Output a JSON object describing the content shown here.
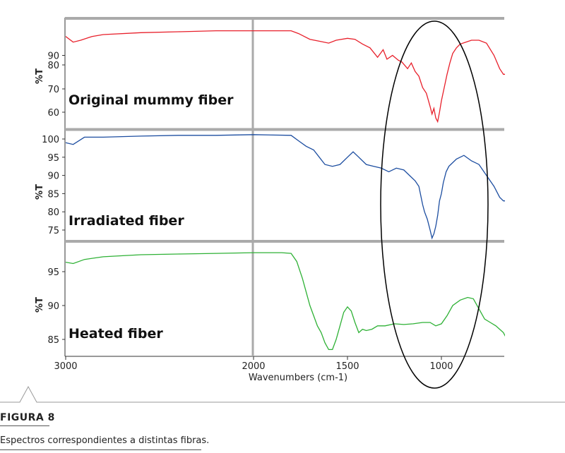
{
  "chart_data": {
    "type": "line",
    "xlabel": "Wavenumbers (cm-1)",
    "x_ticks": [
      3000,
      2000,
      1500,
      1000
    ],
    "x_range": [
      3950,
      650
    ],
    "x_reversed": true,
    "panels": [
      {
        "name": "Original mummy fiber",
        "ylabel": "%T",
        "color": "#e8202b",
        "y_ticks": [
          90,
          80,
          70,
          60
        ],
        "points": [
          [
            3950,
            101
          ],
          [
            3750,
            102
          ],
          [
            3650,
            102.5
          ],
          [
            3580,
            99
          ],
          [
            3480,
            93
          ],
          [
            3400,
            88
          ],
          [
            3360,
            85.5
          ],
          [
            3300,
            88
          ],
          [
            3230,
            92
          ],
          [
            3180,
            94
          ],
          [
            3150,
            93
          ],
          [
            3100,
            96
          ],
          [
            3050,
            99
          ],
          [
            3000,
            100
          ],
          [
            2960,
            97
          ],
          [
            2920,
            98
          ],
          [
            2860,
            100
          ],
          [
            2800,
            101
          ],
          [
            2600,
            102
          ],
          [
            2400,
            102.5
          ],
          [
            2200,
            103
          ],
          [
            2000,
            103
          ],
          [
            1800,
            103
          ],
          [
            1760,
            101.5
          ],
          [
            1700,
            98.5
          ],
          [
            1650,
            97.5
          ],
          [
            1600,
            96.5
          ],
          [
            1560,
            98
          ],
          [
            1500,
            99
          ],
          [
            1460,
            98.5
          ],
          [
            1420,
            96
          ],
          [
            1380,
            94
          ],
          [
            1340,
            89
          ],
          [
            1310,
            93
          ],
          [
            1290,
            88
          ],
          [
            1260,
            90
          ],
          [
            1230,
            87.5
          ],
          [
            1210,
            86.5
          ],
          [
            1180,
            83
          ],
          [
            1160,
            86
          ],
          [
            1140,
            81.5
          ],
          [
            1120,
            79
          ],
          [
            1100,
            73
          ],
          [
            1080,
            70
          ],
          [
            1060,
            63
          ],
          [
            1050,
            59
          ],
          [
            1040,
            62
          ],
          [
            1030,
            57
          ],
          [
            1020,
            55
          ],
          [
            1010,
            60
          ],
          [
            1000,
            66
          ],
          [
            985,
            73
          ],
          [
            970,
            80
          ],
          [
            955,
            86
          ],
          [
            940,
            91
          ],
          [
            920,
            94
          ],
          [
            900,
            96
          ],
          [
            870,
            97
          ],
          [
            840,
            98
          ],
          [
            800,
            98
          ],
          [
            760,
            96.5
          ],
          [
            720,
            90
          ],
          [
            690,
            83
          ],
          [
            670,
            80
          ],
          [
            650,
            80
          ]
        ]
      },
      {
        "name": "Irradiated fiber",
        "ylabel": "%T",
        "color": "#1c4da0",
        "y_ticks": [
          100,
          95,
          90,
          85,
          80,
          75
        ],
        "points": [
          [
            3950,
            101.5
          ],
          [
            3750,
            101.5
          ],
          [
            3650,
            101
          ],
          [
            3580,
            99.5
          ],
          [
            3500,
            97
          ],
          [
            3420,
            95
          ],
          [
            3360,
            93.5
          ],
          [
            3300,
            95
          ],
          [
            3220,
            96.5
          ],
          [
            3160,
            98
          ],
          [
            3100,
            99.5
          ],
          [
            3040,
            99.5
          ],
          [
            3000,
            99
          ],
          [
            2960,
            98.5
          ],
          [
            2900,
            100.5
          ],
          [
            2800,
            100.5
          ],
          [
            2600,
            100.8
          ],
          [
            2400,
            101
          ],
          [
            2200,
            101
          ],
          [
            2000,
            101.2
          ],
          [
            1800,
            101
          ],
          [
            1760,
            99.5
          ],
          [
            1720,
            98
          ],
          [
            1680,
            97
          ],
          [
            1650,
            95
          ],
          [
            1620,
            93
          ],
          [
            1580,
            92.5
          ],
          [
            1540,
            93
          ],
          [
            1500,
            95
          ],
          [
            1470,
            96.5
          ],
          [
            1440,
            95
          ],
          [
            1400,
            93
          ],
          [
            1360,
            92.5
          ],
          [
            1320,
            92
          ],
          [
            1280,
            91
          ],
          [
            1240,
            92
          ],
          [
            1200,
            91.5
          ],
          [
            1170,
            90
          ],
          [
            1140,
            88.5
          ],
          [
            1120,
            87
          ],
          [
            1100,
            82
          ],
          [
            1090,
            80
          ],
          [
            1075,
            78
          ],
          [
            1060,
            75
          ],
          [
            1050,
            72.8
          ],
          [
            1040,
            74
          ],
          [
            1030,
            76
          ],
          [
            1020,
            79
          ],
          [
            1010,
            83
          ],
          [
            1000,
            85
          ],
          [
            990,
            88
          ],
          [
            975,
            91
          ],
          [
            960,
            92.5
          ],
          [
            940,
            93.5
          ],
          [
            920,
            94.5
          ],
          [
            880,
            95.5
          ],
          [
            840,
            94
          ],
          [
            800,
            93
          ],
          [
            760,
            90
          ],
          [
            720,
            87
          ],
          [
            690,
            84
          ],
          [
            670,
            83
          ],
          [
            650,
            83
          ]
        ]
      },
      {
        "name": "Heated fiber",
        "ylabel": "%T",
        "color": "#2eb135",
        "y_ticks": [
          95,
          90,
          85
        ],
        "points": [
          [
            3950,
            99
          ],
          [
            3800,
            99
          ],
          [
            3760,
            98.6
          ],
          [
            3730,
            97.5
          ],
          [
            3680,
            96.5
          ],
          [
            3600,
            95.5
          ],
          [
            3520,
            95
          ],
          [
            3420,
            94.7
          ],
          [
            3340,
            94.7
          ],
          [
            3250,
            95
          ],
          [
            3150,
            95.5
          ],
          [
            3050,
            96
          ],
          [
            3000,
            96.4
          ],
          [
            2960,
            96.2
          ],
          [
            2900,
            96.8
          ],
          [
            2800,
            97.2
          ],
          [
            2600,
            97.5
          ],
          [
            2400,
            97.6
          ],
          [
            2200,
            97.7
          ],
          [
            2000,
            97.8
          ],
          [
            1850,
            97.8
          ],
          [
            1800,
            97.7
          ],
          [
            1770,
            96.5
          ],
          [
            1740,
            94
          ],
          [
            1720,
            92
          ],
          [
            1700,
            90
          ],
          [
            1680,
            88.5
          ],
          [
            1660,
            87
          ],
          [
            1640,
            86
          ],
          [
            1620,
            84.5
          ],
          [
            1600,
            83.5
          ],
          [
            1580,
            83.5
          ],
          [
            1560,
            85
          ],
          [
            1540,
            87
          ],
          [
            1520,
            89
          ],
          [
            1500,
            89.8
          ],
          [
            1480,
            89.2
          ],
          [
            1460,
            87.5
          ],
          [
            1440,
            86
          ],
          [
            1420,
            86.5
          ],
          [
            1400,
            86.3
          ],
          [
            1370,
            86.5
          ],
          [
            1340,
            87
          ],
          [
            1300,
            87
          ],
          [
            1250,
            87.3
          ],
          [
            1200,
            87.2
          ],
          [
            1150,
            87.3
          ],
          [
            1100,
            87.5
          ],
          [
            1060,
            87.5
          ],
          [
            1030,
            87
          ],
          [
            1000,
            87.3
          ],
          [
            970,
            88.5
          ],
          [
            940,
            90
          ],
          [
            900,
            90.8
          ],
          [
            860,
            91.2
          ],
          [
            830,
            91
          ],
          [
            800,
            89.5
          ],
          [
            770,
            88
          ],
          [
            740,
            87.5
          ],
          [
            710,
            87
          ],
          [
            690,
            86.5
          ],
          [
            670,
            86
          ],
          [
            655,
            85.2
          ],
          [
            650,
            85
          ]
        ]
      }
    ],
    "annotation": "ellipse highlighting region ~1400-650 cm-1",
    "grid": false
  },
  "caption": {
    "figure_label": "FIGURA 8",
    "text": "Espectros correspondientes a distintas fibras."
  }
}
